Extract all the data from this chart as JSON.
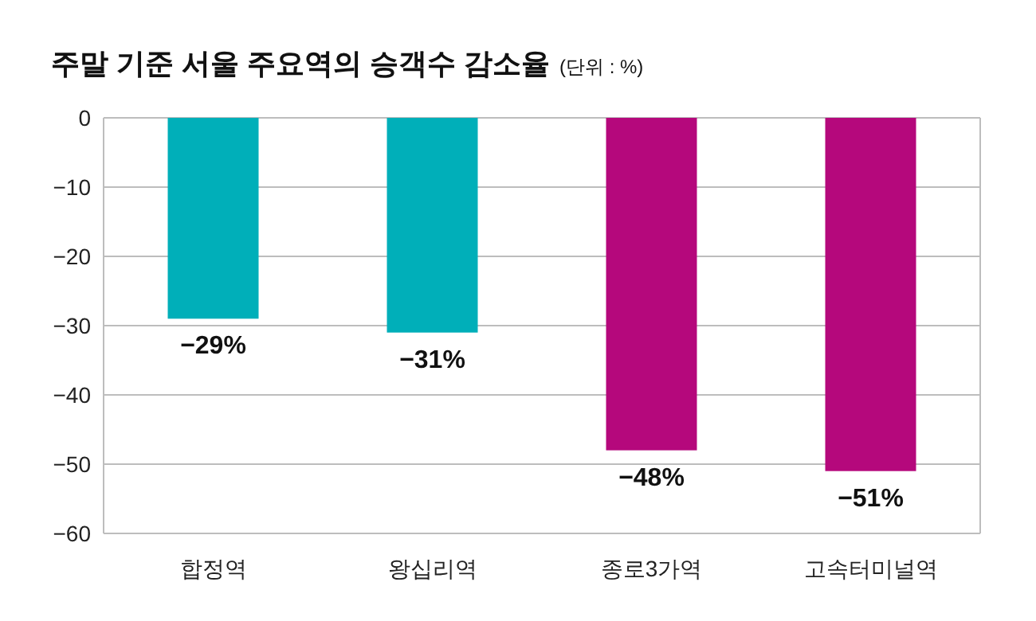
{
  "chart_data": {
    "type": "bar",
    "title": "주말 기준 서울 주요역의 승객수 감소율",
    "subtitle": "(단위 : %)",
    "categories": [
      "합정역",
      "왕십리역",
      "종로3가역",
      "고속터미널역"
    ],
    "values": [
      -29,
      -31,
      -48,
      -51
    ],
    "colors": [
      "#00afb9",
      "#00afb9",
      "#b5087c",
      "#b5087c"
    ],
    "value_labels": [
      "−29%",
      "−31%",
      "−48%",
      "−51%"
    ],
    "ylim": [
      -60,
      0
    ],
    "yticks": [
      {
        "value": 0,
        "label": "0"
      },
      {
        "value": -10,
        "label": "−10"
      },
      {
        "value": -20,
        "label": "−20"
      },
      {
        "value": -30,
        "label": "−30"
      },
      {
        "value": -40,
        "label": "−40"
      },
      {
        "value": -50,
        "label": "−50"
      },
      {
        "value": -60,
        "label": "−60"
      }
    ],
    "grid": "y"
  }
}
